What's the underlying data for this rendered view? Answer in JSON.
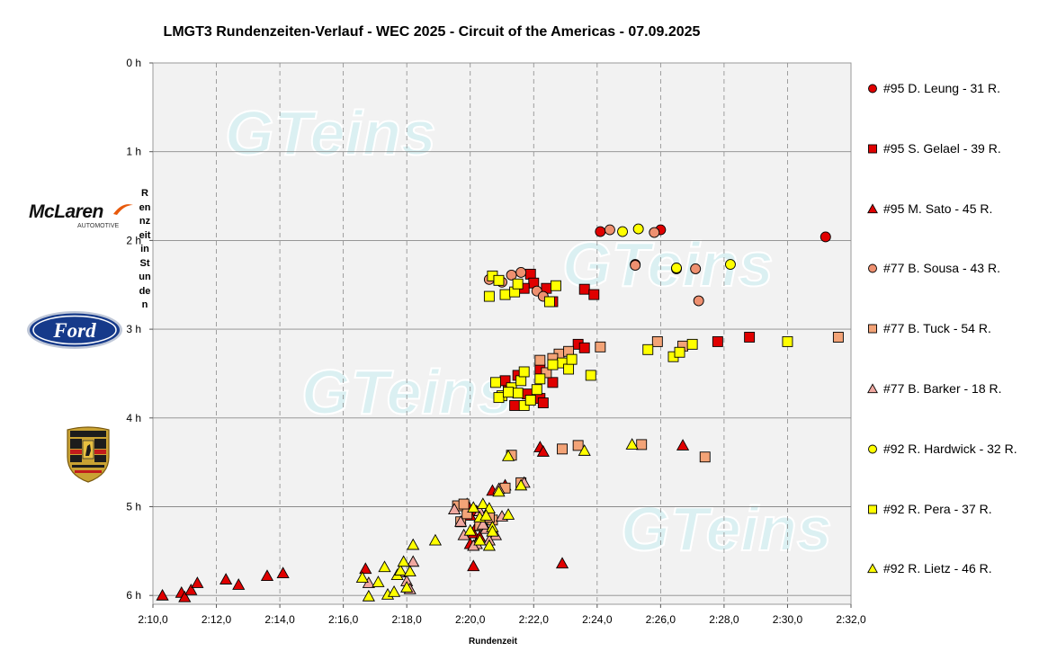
{
  "chart_data": {
    "type": "scatter",
    "title": "LMGT3 Rundenzeiten-Verlauf - WEC 2025 - Circuit of the Americas - 07.09.2025",
    "xlabel": "Rundenzeit",
    "ylabel": "Rennzeit in Stunden",
    "x_unit": "seconds (lap time)",
    "y_unit": "hours (race time)",
    "xlim": [
      130,
      152
    ],
    "ylim": [
      0,
      6.1
    ],
    "y_inverted": true,
    "x_ticks": [
      "2:10,0",
      "2:12,0",
      "2:14,0",
      "2:16,0",
      "2:18,0",
      "2:20,0",
      "2:22,0",
      "2:24,0",
      "2:26,0",
      "2:28,0",
      "2:30,0",
      "2:32,0"
    ],
    "y_ticks": [
      "0 h",
      "1 h",
      "2 h",
      "3 h",
      "4 h",
      "5 h",
      "6 h"
    ],
    "grid": true,
    "legend_position": "right",
    "watermark": "GTeins",
    "series": [
      {
        "name": "#95 D. Leung - 31 R.",
        "marker": "circle",
        "color": "#e00000",
        "points": [
          [
            144.1,
            1.9
          ],
          [
            146.0,
            1.88
          ],
          [
            151.2,
            1.96
          ],
          [
            145.2,
            2.27
          ]
        ]
      },
      {
        "name": "#95 S. Gelael - 39 R.",
        "marker": "square",
        "color": "#e00000",
        "points": [
          [
            141.9,
            2.38
          ],
          [
            142.0,
            2.48
          ],
          [
            142.4,
            2.54
          ],
          [
            142.6,
            2.69
          ],
          [
            143.6,
            2.55
          ],
          [
            143.9,
            2.61
          ],
          [
            141.7,
            2.54
          ],
          [
            143.4,
            3.17
          ],
          [
            143.6,
            3.21
          ],
          [
            147.8,
            3.14
          ],
          [
            148.8,
            3.09
          ],
          [
            142.2,
            3.45
          ],
          [
            142.6,
            3.6
          ],
          [
            141.5,
            3.52
          ],
          [
            141.2,
            3.67
          ],
          [
            141.1,
            3.58
          ],
          [
            142.2,
            3.78
          ],
          [
            142.3,
            3.83
          ],
          [
            141.8,
            3.73
          ],
          [
            141.4,
            3.86
          ]
        ]
      },
      {
        "name": "#95 M. Sato - 45 R.",
        "marker": "triangle",
        "color": "#e00000",
        "points": [
          [
            130.3,
            6.0
          ],
          [
            130.9,
            5.97
          ],
          [
            131.0,
            6.02
          ],
          [
            131.2,
            5.94
          ],
          [
            131.4,
            5.86
          ],
          [
            132.3,
            5.82
          ],
          [
            132.7,
            5.88
          ],
          [
            133.6,
            5.78
          ],
          [
            134.1,
            5.75
          ],
          [
            136.7,
            5.7
          ],
          [
            142.2,
            4.33
          ],
          [
            142.3,
            4.38
          ],
          [
            146.7,
            4.31
          ],
          [
            142.9,
            5.64
          ],
          [
            140.1,
            5.67
          ],
          [
            140.0,
            5.42
          ],
          [
            140.1,
            5.3
          ],
          [
            140.2,
            5.22
          ],
          [
            139.9,
            4.97
          ],
          [
            140.2,
            5.05
          ],
          [
            140.6,
            5.06
          ],
          [
            140.7,
            4.82
          ],
          [
            141.1,
            4.76
          ],
          [
            140.0,
            5.1
          ],
          [
            140.3,
            5.34
          ]
        ]
      },
      {
        "name": "#77 B. Sousa - 43 R.",
        "marker": "circle",
        "color": "#ee9070",
        "points": [
          [
            144.4,
            1.88
          ],
          [
            145.8,
            1.91
          ],
          [
            140.6,
            2.44
          ],
          [
            141.0,
            2.47
          ],
          [
            141.3,
            2.39
          ],
          [
            141.6,
            2.36
          ],
          [
            142.1,
            2.57
          ],
          [
            142.3,
            2.63
          ],
          [
            147.2,
            2.68
          ],
          [
            146.5,
            2.32
          ],
          [
            147.1,
            2.32
          ],
          [
            145.2,
            2.28
          ]
        ]
      },
      {
        "name": "#77 B. Tuck - 54 R.",
        "marker": "square",
        "color": "#f3a377",
        "points": [
          [
            144.1,
            3.2
          ],
          [
            145.9,
            3.14
          ],
          [
            146.7,
            3.19
          ],
          [
            151.6,
            3.09
          ],
          [
            142.2,
            3.35
          ],
          [
            142.4,
            3.49
          ],
          [
            142.8,
            3.28
          ],
          [
            143.1,
            3.25
          ],
          [
            142.6,
            3.33
          ],
          [
            142.9,
            4.35
          ],
          [
            143.4,
            4.31
          ],
          [
            145.4,
            4.3
          ],
          [
            147.4,
            4.44
          ],
          [
            141.3,
            4.42
          ],
          [
            141.6,
            4.73
          ],
          [
            139.7,
            5.17
          ],
          [
            139.9,
            5.08
          ],
          [
            139.6,
            4.99
          ],
          [
            139.8,
            4.97
          ],
          [
            140.3,
            5.21
          ],
          [
            140.7,
            5.15
          ],
          [
            141.1,
            4.79
          ],
          [
            140.6,
            5.12
          ]
        ]
      },
      {
        "name": "#77 B. Barker - 18 R.",
        "marker": "triangle",
        "color": "#f0a8a0",
        "points": [
          [
            141.7,
            4.73
          ],
          [
            140.9,
            4.8
          ],
          [
            140.3,
            5.05
          ],
          [
            140.5,
            5.25
          ],
          [
            140.2,
            5.42
          ],
          [
            140.1,
            5.44
          ],
          [
            136.8,
            5.86
          ],
          [
            137.8,
            5.74
          ],
          [
            138.0,
            5.84
          ],
          [
            138.1,
            5.93
          ],
          [
            138.2,
            5.62
          ],
          [
            140.8,
            5.32
          ],
          [
            139.5,
            5.03
          ],
          [
            139.7,
            5.17
          ],
          [
            140.6,
            5.38
          ],
          [
            140.4,
            5.2
          ],
          [
            139.8,
            5.32
          ],
          [
            141.0,
            5.11
          ]
        ]
      },
      {
        "name": "#92 R. Hardwick - 32 R.",
        "marker": "circle",
        "color": "#ffff00",
        "points": [
          [
            144.8,
            1.9
          ],
          [
            145.3,
            1.87
          ],
          [
            146.5,
            2.31
          ],
          [
            148.2,
            2.27
          ]
        ]
      },
      {
        "name": "#92 R. Pera - 37 R.",
        "marker": "square",
        "color": "#ffff00",
        "points": [
          [
            140.7,
            2.4
          ],
          [
            140.9,
            2.45
          ],
          [
            140.6,
            2.63
          ],
          [
            141.1,
            2.61
          ],
          [
            141.4,
            2.58
          ],
          [
            141.5,
            2.49
          ],
          [
            142.5,
            2.69
          ],
          [
            142.7,
            2.51
          ],
          [
            145.6,
            3.23
          ],
          [
            146.4,
            3.31
          ],
          [
            146.6,
            3.26
          ],
          [
            147.0,
            3.17
          ],
          [
            150.0,
            3.14
          ],
          [
            143.8,
            3.52
          ],
          [
            142.9,
            3.38
          ],
          [
            143.1,
            3.45
          ],
          [
            143.2,
            3.34
          ],
          [
            141.0,
            3.75
          ],
          [
            140.8,
            3.6
          ],
          [
            140.9,
            3.77
          ],
          [
            141.3,
            3.66
          ],
          [
            141.5,
            3.72
          ],
          [
            141.6,
            3.58
          ],
          [
            141.7,
            3.48
          ],
          [
            141.7,
            3.86
          ],
          [
            141.9,
            3.8
          ],
          [
            142.1,
            3.68
          ],
          [
            142.2,
            3.56
          ],
          [
            142.6,
            3.4
          ],
          [
            141.2,
            3.71
          ]
        ]
      },
      {
        "name": "#92 R. Lietz - 46 R.",
        "marker": "triangle",
        "color": "#ffff00",
        "points": [
          [
            136.6,
            5.8
          ],
          [
            136.8,
            6.01
          ],
          [
            137.1,
            5.85
          ],
          [
            137.3,
            5.68
          ],
          [
            137.4,
            5.99
          ],
          [
            137.6,
            5.96
          ],
          [
            137.7,
            5.77
          ],
          [
            137.8,
            5.72
          ],
          [
            137.9,
            5.62
          ],
          [
            138.0,
            5.91
          ],
          [
            138.1,
            5.73
          ],
          [
            138.2,
            5.43
          ],
          [
            138.9,
            5.38
          ],
          [
            140.0,
            5.27
          ],
          [
            140.1,
            5.01
          ],
          [
            140.3,
            5.12
          ],
          [
            140.4,
            4.97
          ],
          [
            140.6,
            5.02
          ],
          [
            140.5,
            5.1
          ],
          [
            140.6,
            5.44
          ],
          [
            140.7,
            5.23
          ],
          [
            140.7,
            5.28
          ],
          [
            141.2,
            5.09
          ],
          [
            140.9,
            4.83
          ],
          [
            141.2,
            4.43
          ],
          [
            141.6,
            4.76
          ],
          [
            143.6,
            4.37
          ],
          [
            145.1,
            4.3
          ],
          [
            140.3,
            5.38
          ]
        ]
      }
    ]
  }
}
